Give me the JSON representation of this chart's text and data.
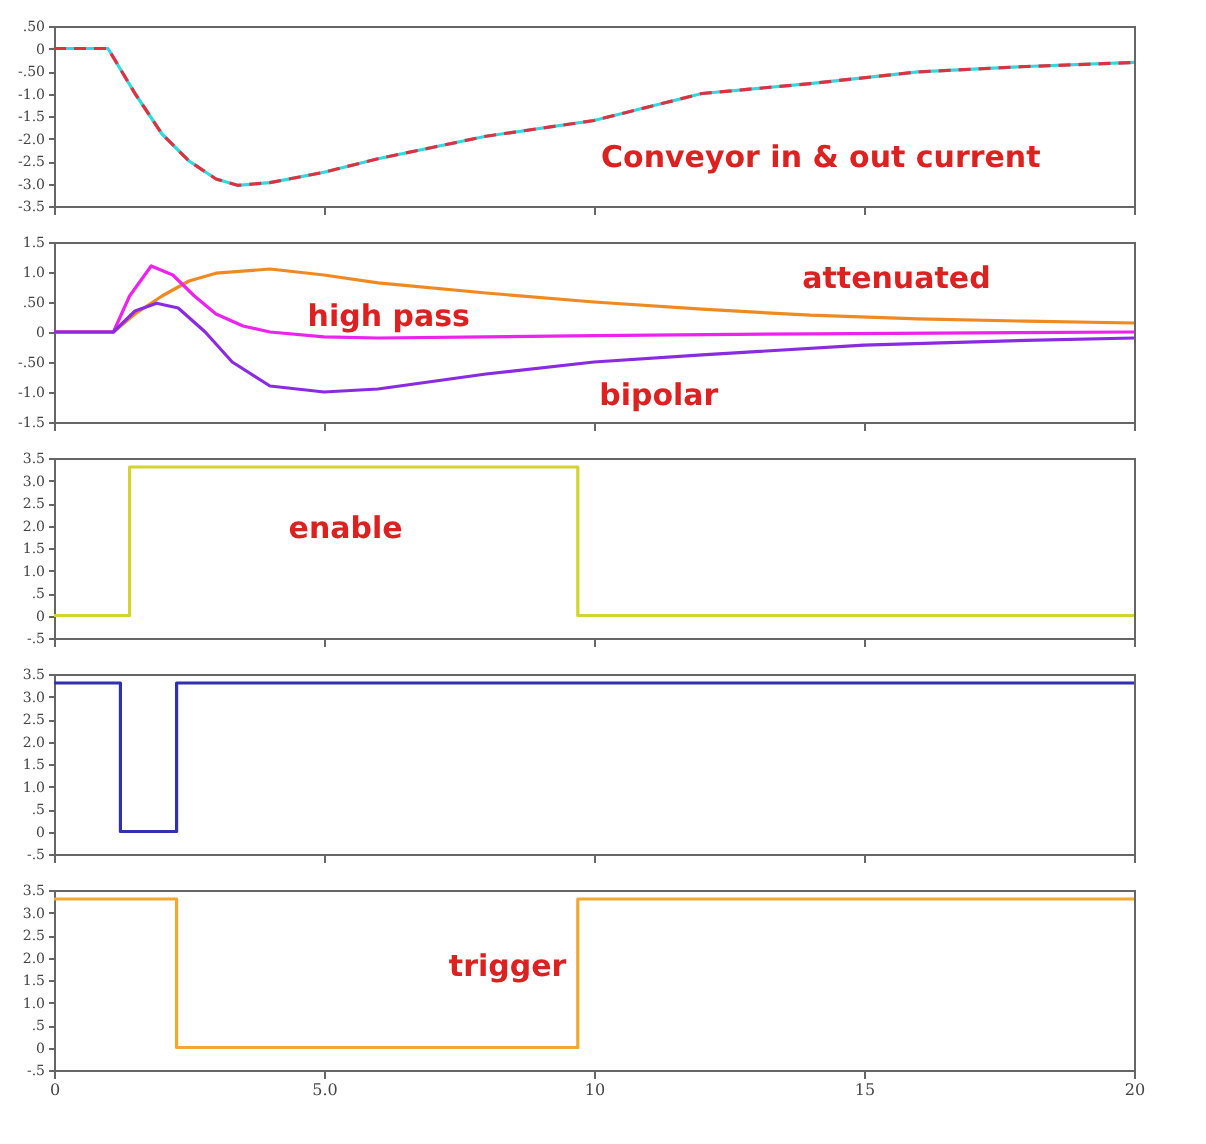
{
  "chart_data": [
    {
      "type": "line",
      "xlim": [
        0,
        20
      ],
      "xticks": [
        0,
        5,
        10,
        15,
        20
      ],
      "ylim": [
        -3.5,
        0.5
      ],
      "yticks": [
        {
          "value": 0.5,
          "label": ".50"
        },
        0,
        {
          "value": -0.5,
          "label": "-.50"
        },
        {
          "value": -1,
          "label": "-1.0"
        },
        -1.5,
        {
          "value": -2,
          "label": "-2.0"
        },
        -2.5,
        {
          "value": -3,
          "label": "-3.0"
        },
        -3.5
      ],
      "tick_labels": "y",
      "annotations": [
        "Conveyor in & out current"
      ],
      "series": [
        {
          "color": "#30d8e0",
          "x": [
            0,
            1.0,
            1.5,
            2.0,
            2.5,
            3.0,
            3.4,
            4,
            5,
            6,
            7,
            8,
            10,
            12,
            14,
            16,
            18,
            20
          ],
          "values": [
            0,
            0,
            -1.0,
            -1.9,
            -2.5,
            -2.9,
            -3.04,
            -2.98,
            -2.75,
            -2.45,
            -2.2,
            -1.95,
            -1.6,
            -1.0,
            -0.78,
            -0.52,
            -0.4,
            -0.31
          ]
        },
        {
          "color": "#e03040",
          "line_style": "dashed",
          "x": [
            0,
            1.0,
            1.5,
            2.0,
            2.5,
            3.0,
            3.4,
            4,
            5,
            6,
            7,
            8,
            10,
            12,
            14,
            16,
            18,
            20
          ],
          "values": [
            0,
            0,
            -1.0,
            -1.9,
            -2.5,
            -2.9,
            -3.04,
            -2.98,
            -2.75,
            -2.45,
            -2.2,
            -1.95,
            -1.6,
            -1.0,
            -0.78,
            -0.52,
            -0.4,
            -0.31
          ]
        }
      ]
    },
    {
      "type": "line",
      "xlim": [
        0,
        20
      ],
      "xticks": [
        0,
        5,
        10,
        15,
        20
      ],
      "ylim": [
        -1.5,
        1.5
      ],
      "yticks": [
        1.5,
        {
          "value": 1,
          "label": "1.0"
        },
        {
          "value": 0.5,
          "label": ".50"
        },
        0,
        {
          "value": -0.5,
          "label": "-.50"
        },
        {
          "value": -1,
          "label": "-1.0"
        },
        -1.5
      ],
      "tick_labels": "y",
      "series": [
        {
          "name": "attenuated",
          "color": "#f08a20",
          "x": [
            0,
            1.1,
            1.5,
            2,
            2.5,
            3,
            4,
            5,
            6,
            8,
            10,
            12,
            14,
            16,
            18,
            20
          ],
          "values": [
            0,
            0,
            0.3,
            0.6,
            0.85,
            0.98,
            1.05,
            0.95,
            0.82,
            0.65,
            0.5,
            0.38,
            0.28,
            0.22,
            0.18,
            0.15
          ]
        },
        {
          "name": "high pass",
          "color": "#ee22ee",
          "x": [
            0,
            1.1,
            1.4,
            1.8,
            2.2,
            2.6,
            3,
            3.5,
            4,
            5,
            6,
            8,
            10,
            14,
            20
          ],
          "values": [
            0,
            0,
            0.6,
            1.1,
            0.95,
            0.6,
            0.3,
            0.1,
            0,
            -0.08,
            -0.1,
            -0.08,
            -0.06,
            -0.03,
            0
          ]
        },
        {
          "name": "bipolar",
          "color": "#8a2be2",
          "x": [
            0,
            1.1,
            1.5,
            1.9,
            2.3,
            2.8,
            3.3,
            4,
            5,
            6,
            8,
            10,
            12,
            15,
            18,
            20
          ],
          "values": [
            0,
            0,
            0.35,
            0.48,
            0.4,
            0,
            -0.5,
            -0.9,
            -1.0,
            -0.95,
            -0.7,
            -0.5,
            -0.38,
            -0.22,
            -0.14,
            -0.1
          ]
        }
      ]
    },
    {
      "type": "step",
      "xlim": [
        0,
        20
      ],
      "xticks": [
        0,
        5,
        10,
        15,
        20
      ],
      "ylim": [
        -0.5,
        3.5
      ],
      "yticks": [
        3.5,
        {
          "value": 3,
          "label": "3.0"
        },
        2.5,
        {
          "value": 2,
          "label": "2.0"
        },
        1.5,
        {
          "value": 1,
          "label": "1.0"
        },
        {
          "value": 0.5,
          "label": ".5"
        },
        0,
        {
          "value": -0.5,
          "label": "-.5"
        }
      ],
      "tick_labels": "y",
      "series": [
        {
          "name": "enable",
          "color": "#d4d430",
          "x": [
            0,
            1.4,
            9.7,
            20
          ],
          "values": [
            0,
            3.3,
            0,
            0
          ]
        }
      ]
    },
    {
      "type": "step",
      "xlim": [
        0,
        20
      ],
      "xticks": [
        0,
        5,
        10,
        15,
        20
      ],
      "ylim": [
        -0.5,
        3.5
      ],
      "yticks": [
        3.5,
        {
          "value": 3,
          "label": "3.0"
        },
        2.5,
        {
          "value": 2,
          "label": "2.0"
        },
        1.5,
        {
          "value": 1,
          "label": "1.0"
        },
        {
          "value": 0.5,
          "label": ".5"
        },
        0,
        {
          "value": -0.5,
          "label": "-.5"
        }
      ],
      "tick_labels": "y",
      "series": [
        {
          "color": "#3030b0",
          "x": [
            0,
            1.23,
            2.27,
            20
          ],
          "values": [
            3.3,
            0,
            3.3,
            3.3
          ]
        }
      ]
    },
    {
      "type": "step",
      "xlim": [
        0,
        20
      ],
      "xticks": [
        0,
        {
          "value": 5,
          "label": "5.0"
        },
        10,
        15,
        20
      ],
      "ylim": [
        -0.5,
        3.5
      ],
      "yticks": [
        3.5,
        {
          "value": 3,
          "label": "3.0"
        },
        2.5,
        {
          "value": 2,
          "label": "2.0"
        },
        1.5,
        {
          "value": 1,
          "label": "1.0"
        },
        {
          "value": 0.5,
          "label": ".5"
        },
        0,
        {
          "value": -0.5,
          "label": "-.5"
        }
      ],
      "series": [
        {
          "name": "trigger",
          "color": "#f0a830",
          "x": [
            0,
            2.27,
            9.7,
            20
          ],
          "values": [
            3.3,
            0,
            3.3,
            3.3
          ]
        }
      ]
    }
  ]
}
